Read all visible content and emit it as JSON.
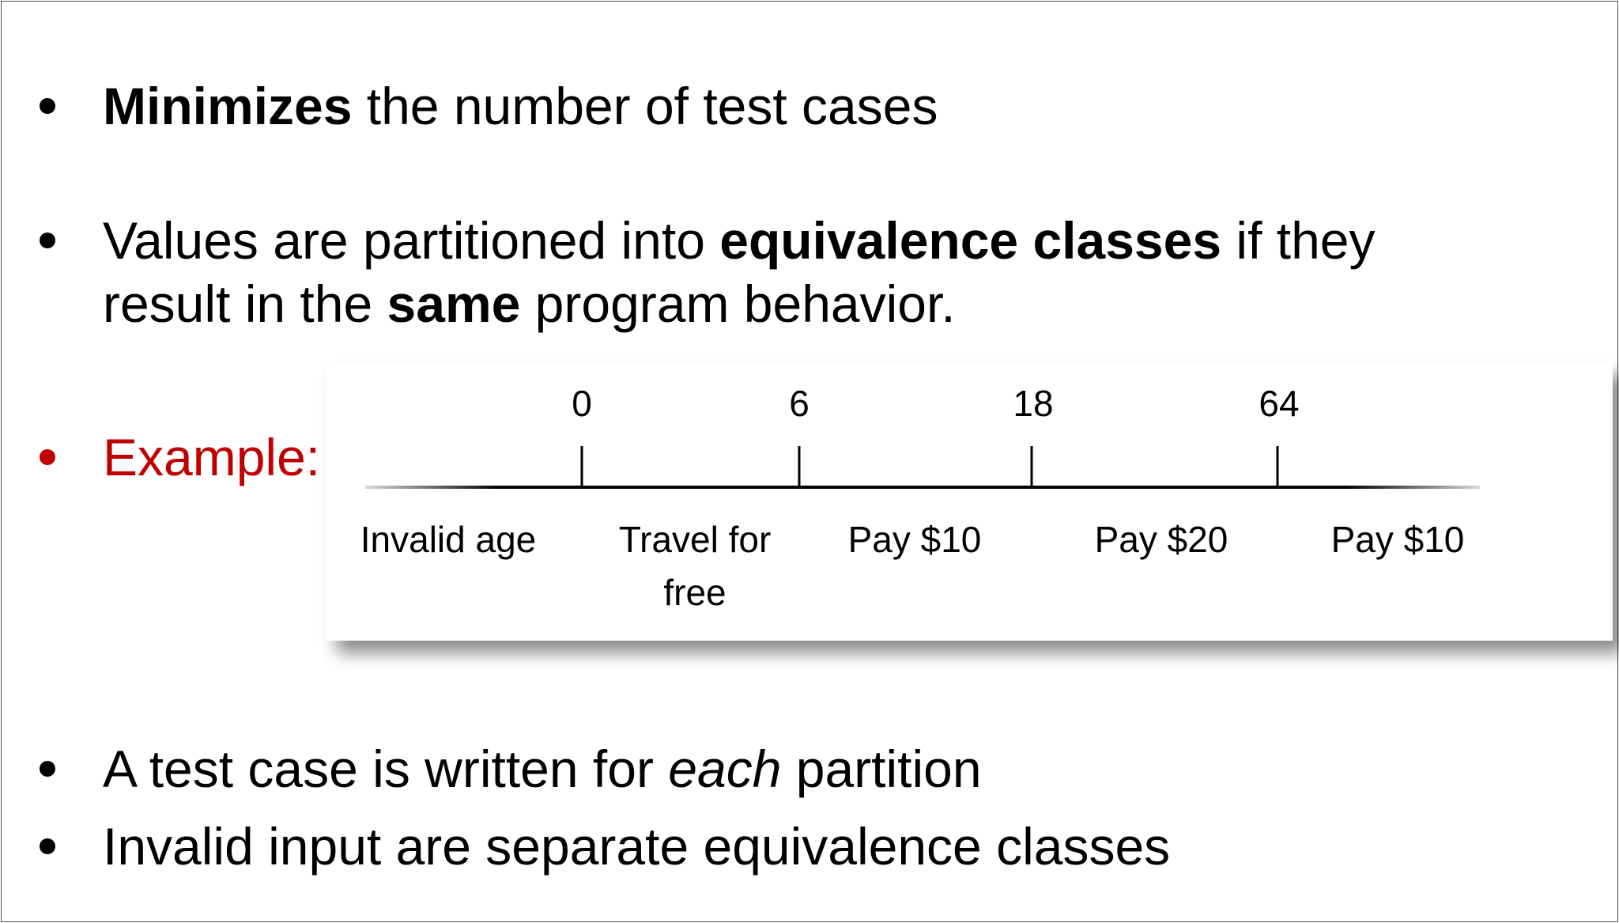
{
  "bullets": [
    {
      "parts": [
        {
          "text": "Minimizes",
          "style": "bold"
        },
        {
          "text": " the number of test cases",
          "style": "normal"
        }
      ]
    },
    {
      "parts": [
        {
          "text": "Values are partitioned into ",
          "style": "normal"
        },
        {
          "text": "equivalence classes",
          "style": "bold"
        },
        {
          "text": " if they",
          "style": "normal"
        }
      ]
    },
    {
      "parts": [
        {
          "text": "result in the ",
          "style": "normal"
        },
        {
          "text": "same",
          "style": "bold"
        },
        {
          "text": " program behavior.",
          "style": "normal"
        }
      ]
    },
    {
      "parts": [
        {
          "text": "Example:",
          "style": "normal"
        }
      ]
    },
    {
      "parts": [
        {
          "text": "A test case is written for ",
          "style": "normal"
        },
        {
          "text": "each",
          "style": "italic"
        },
        {
          "text": " partition",
          "style": "normal"
        }
      ]
    },
    {
      "parts": [
        {
          "text": "Invalid input are separate equivalence classes",
          "style": "normal"
        }
      ]
    }
  ],
  "example": {
    "ticks": [
      "0",
      "6",
      "18",
      "64"
    ],
    "partitions": [
      {
        "lines": [
          "Invalid age"
        ]
      },
      {
        "lines": [
          "Travel for",
          "free"
        ]
      },
      {
        "lines": [
          "Pay $10"
        ]
      },
      {
        "lines": [
          "Pay $20"
        ]
      },
      {
        "lines": [
          "Pay $10"
        ]
      }
    ]
  },
  "colors": {
    "example_accent": "#c00000",
    "text": "#000000"
  }
}
